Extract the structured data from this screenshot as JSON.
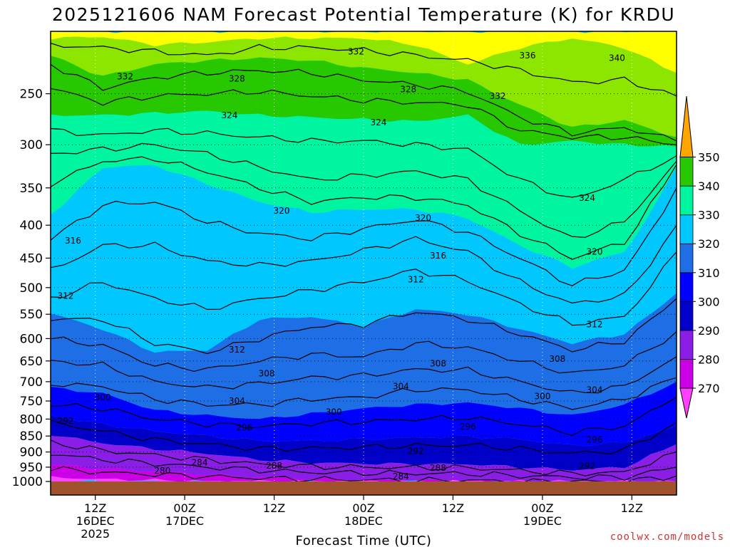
{
  "chart_data": {
    "type": "contour",
    "title": "2025121606 NAM Forecast Potential Temperature (K) for KRDU",
    "xlabel": "Forecast Time (UTC)",
    "ylabel": "",
    "y_axis": {
      "ticks": [
        250,
        300,
        350,
        400,
        450,
        500,
        550,
        600,
        650,
        700,
        750,
        800,
        850,
        900,
        950,
        1000
      ],
      "tick_labels": [
        "250",
        "300",
        "350",
        "400",
        "450",
        "500",
        "550",
        "600",
        "650",
        "700",
        "750",
        "800",
        "850",
        "900",
        "950",
        "1000"
      ],
      "ylim": [
        200,
        1000
      ],
      "scale": "log",
      "inverted": true
    },
    "x_axis": {
      "ticks": [
        {
          "hour": 6,
          "labels": [
            "12Z",
            "16DEC",
            "2025"
          ]
        },
        {
          "hour": 18,
          "labels": [
            "00Z",
            "17DEC"
          ]
        },
        {
          "hour": 30,
          "labels": [
            "12Z"
          ]
        },
        {
          "hour": 42,
          "labels": [
            "00Z",
            "18DEC"
          ]
        },
        {
          "hour": 54,
          "labels": [
            "12Z"
          ]
        },
        {
          "hour": 66,
          "labels": [
            "00Z",
            "19DEC"
          ]
        },
        {
          "hour": 78,
          "labels": [
            "12Z"
          ]
        }
      ],
      "xlim": [
        0,
        84
      ]
    },
    "colorbar": {
      "levels": [
        270,
        280,
        290,
        300,
        310,
        320,
        330,
        340,
        350
      ],
      "colors": [
        "#ff40ff",
        "#cc00e6",
        "#8a1ee6",
        "#0000c8",
        "#0000ff",
        "#1e6ee6",
        "#00c8ff",
        "#00f5a0",
        "#28c800",
        "#8ce600",
        "#ffff00",
        "#ffa500"
      ]
    },
    "contour_interval": 4,
    "contour_labels": [
      {
        "value": "332",
        "x": 10,
        "p": 235
      },
      {
        "value": "332",
        "x": 41,
        "p": 215
      },
      {
        "value": "336",
        "x": 64,
        "p": 218
      },
      {
        "value": "340",
        "x": 76,
        "p": 220
      },
      {
        "value": "328",
        "x": 25,
        "p": 237
      },
      {
        "value": "328",
        "x": 48,
        "p": 246
      },
      {
        "value": "332",
        "x": 60,
        "p": 252
      },
      {
        "value": "324",
        "x": 24,
        "p": 270
      },
      {
        "value": "324",
        "x": 44,
        "p": 277
      },
      {
        "value": "324",
        "x": 72,
        "p": 363
      },
      {
        "value": "320",
        "x": 31,
        "p": 380
      },
      {
        "value": "320",
        "x": 50,
        "p": 390
      },
      {
        "value": "320",
        "x": 73,
        "p": 440
      },
      {
        "value": "316",
        "x": 3,
        "p": 423
      },
      {
        "value": "316",
        "x": 52,
        "p": 446
      },
      {
        "value": "312",
        "x": 2,
        "p": 515
      },
      {
        "value": "312",
        "x": 49,
        "p": 486
      },
      {
        "value": "312",
        "x": 73,
        "p": 570
      },
      {
        "value": "312",
        "x": 25,
        "p": 624
      },
      {
        "value": "308",
        "x": 29,
        "p": 680
      },
      {
        "value": "308",
        "x": 52,
        "p": 656
      },
      {
        "value": "308",
        "x": 68,
        "p": 645
      },
      {
        "value": "304",
        "x": 25,
        "p": 750
      },
      {
        "value": "304",
        "x": 47,
        "p": 712
      },
      {
        "value": "304",
        "x": 73,
        "p": 721
      },
      {
        "value": "300",
        "x": 7,
        "p": 740
      },
      {
        "value": "300",
        "x": 38,
        "p": 780
      },
      {
        "value": "300",
        "x": 66,
        "p": 738
      },
      {
        "value": "296",
        "x": 26,
        "p": 825
      },
      {
        "value": "296",
        "x": 56,
        "p": 822
      },
      {
        "value": "296",
        "x": 73,
        "p": 862
      },
      {
        "value": "292",
        "x": 2,
        "p": 805
      },
      {
        "value": "292",
        "x": 49,
        "p": 897
      },
      {
        "value": "292",
        "x": 72,
        "p": 947
      },
      {
        "value": "288",
        "x": 30,
        "p": 945
      },
      {
        "value": "288",
        "x": 52,
        "p": 953
      },
      {
        "value": "284",
        "x": 20,
        "p": 935
      },
      {
        "value": "284",
        "x": 47,
        "p": 982
      },
      {
        "value": "280",
        "x": 15,
        "p": 963
      }
    ],
    "bands": [
      {
        "color": "#ffff00",
        "top": [
          200,
          200,
          200,
          200,
          200,
          200,
          200,
          200,
          200,
          200,
          200,
          200,
          200
        ],
        "bottom": [
          205,
          204,
          210,
          208,
          205,
          205,
          205,
          210,
          225,
          212,
          205,
          212,
          232
        ]
      },
      {
        "color": "#8ce600",
        "top": [
          205,
          204,
          210,
          208,
          205,
          205,
          205,
          210,
          225,
          212,
          205,
          212,
          232
        ],
        "bottom": [
          218,
          235,
          225,
          222,
          220,
          222,
          228,
          232,
          238,
          260,
          282,
          275,
          292
        ]
      },
      {
        "color": "#28c800",
        "top": [
          218,
          235,
          225,
          222,
          220,
          222,
          228,
          232,
          238,
          260,
          282,
          275,
          292
        ],
        "bottom": [
          270,
          270,
          268,
          266,
          270,
          272,
          274,
          276,
          270,
          300,
          296,
          300,
          302
        ]
      },
      {
        "color": "#00f5a0",
        "top": [
          270,
          270,
          268,
          266,
          270,
          272,
          274,
          276,
          270,
          300,
          296,
          300,
          302
        ],
        "bottom": [
          385,
          325,
          323,
          345,
          368,
          382,
          378,
          378,
          390,
          430,
          465,
          440,
          325
        ]
      },
      {
        "color": "#00c8ff",
        "top": [
          385,
          325,
          323,
          345,
          368,
          382,
          378,
          378,
          390,
          430,
          465,
          440,
          325
        ],
        "bottom": [
          548,
          580,
          630,
          625,
          560,
          555,
          575,
          540,
          550,
          580,
          610,
          590,
          510
        ]
      },
      {
        "color": "#1e6ee6",
        "top": [
          548,
          580,
          630,
          625,
          560,
          555,
          575,
          540,
          550,
          580,
          610,
          590,
          510
        ],
        "bottom": [
          715,
          730,
          775,
          790,
          800,
          785,
          770,
          760,
          755,
          770,
          790,
          760,
          700
        ]
      },
      {
        "color": "#0000ff",
        "top": [
          715,
          730,
          775,
          790,
          800,
          785,
          770,
          760,
          755,
          770,
          790,
          760,
          700
        ],
        "bottom": [
          790,
          815,
          835,
          850,
          865,
          865,
          860,
          855,
          852,
          860,
          880,
          870,
          820
        ]
      },
      {
        "color": "#0000c8",
        "top": [
          790,
          815,
          835,
          850,
          865,
          865,
          860,
          855,
          852,
          860,
          880,
          870,
          820
        ],
        "bottom": [
          845,
          872,
          890,
          905,
          925,
          935,
          938,
          940,
          940,
          950,
          960,
          950,
          875
        ]
      },
      {
        "color": "#8a1ee6",
        "top": [
          845,
          872,
          890,
          905,
          925,
          935,
          938,
          940,
          940,
          950,
          960,
          950,
          875
        ],
        "bottom": [
          940,
          955,
          965,
          975,
          985,
          990,
          992,
          995,
          995,
          1000,
          1000,
          1000,
          1000
        ]
      },
      {
        "color": "#cc00e6",
        "top": [
          940,
          955,
          965,
          975,
          985,
          990,
          992,
          995,
          995,
          1000,
          1000,
          1000,
          1000
        ],
        "bottom": [
          985,
          992,
          995,
          1000,
          1000,
          1000,
          1000,
          1000,
          1000,
          1000,
          1000,
          1000,
          1000
        ]
      },
      {
        "color": "#ff40ff",
        "top": [
          985,
          992,
          995,
          1000,
          1000,
          1000,
          1000,
          1000,
          1000,
          1000,
          1000,
          1000,
          1000
        ],
        "bottom": [
          1000,
          1000,
          1000,
          1000,
          1000,
          1000,
          1000,
          1000,
          1000,
          1000,
          1000,
          1000,
          1000
        ]
      }
    ],
    "band_hours": [
      0,
      7,
      14,
      21,
      28,
      35,
      42,
      49,
      56,
      63,
      70,
      77,
      84
    ],
    "isolines_p": [
      [
        210,
        212,
        215,
        218,
        212,
        212,
        214,
        218,
        222,
        230,
        240,
        238,
        252
      ],
      [
        225,
        245,
        236,
        232,
        230,
        232,
        238,
        242,
        248,
        272,
        288,
        282,
        296
      ],
      [
        245,
        258,
        252,
        250,
        248,
        252,
        256,
        258,
        260,
        285,
        292,
        292,
        300
      ],
      [
        285,
        290,
        285,
        288,
        292,
        296,
        296,
        300,
        305,
        340,
        365,
        340,
        312
      ],
      [
        310,
        305,
        300,
        310,
        325,
        340,
        335,
        330,
        340,
        380,
        420,
        395,
        318
      ],
      [
        345,
        318,
        315,
        330,
        350,
        368,
        362,
        362,
        372,
        412,
        450,
        425,
        322
      ],
      [
        420,
        372,
        368,
        395,
        412,
        420,
        405,
        392,
        410,
        450,
        495,
        470,
        350
      ],
      [
        470,
        430,
        430,
        455,
        462,
        455,
        438,
        420,
        440,
        490,
        530,
        515,
        400
      ],
      [
        520,
        490,
        520,
        540,
        520,
        505,
        490,
        470,
        488,
        530,
        570,
        555,
        440
      ],
      [
        560,
        560,
        610,
        630,
        600,
        575,
        570,
        545,
        560,
        590,
        625,
        605,
        520
      ],
      [
        600,
        615,
        660,
        670,
        650,
        635,
        640,
        610,
        620,
        650,
        680,
        660,
        585
      ],
      [
        650,
        660,
        700,
        715,
        705,
        690,
        685,
        670,
        672,
        700,
        730,
        712,
        640
      ],
      [
        705,
        712,
        745,
        760,
        760,
        745,
        740,
        720,
        720,
        745,
        770,
        745,
        690
      ],
      [
        760,
        770,
        800,
        815,
        822,
        812,
        808,
        800,
        796,
        815,
        840,
        820,
        740
      ],
      [
        810,
        835,
        862,
        875,
        890,
        888,
        885,
        880,
        878,
        890,
        905,
        895,
        810
      ],
      [
        870,
        895,
        910,
        925,
        940,
        948,
        950,
        952,
        952,
        962,
        972,
        968,
        900
      ],
      [
        905,
        925,
        938,
        950,
        960,
        968,
        970,
        972,
        972,
        980,
        985,
        985,
        950
      ],
      [
        955,
        968,
        975,
        982,
        988,
        992,
        994,
        996,
        996,
        1000,
        1000,
        1000,
        980
      ]
    ]
  },
  "credit": "coolwx.com/models"
}
